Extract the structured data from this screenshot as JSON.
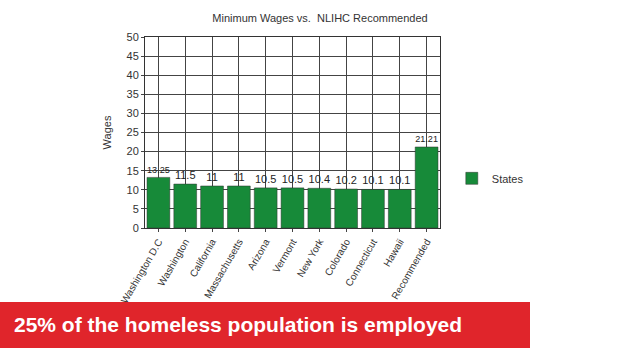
{
  "chart_data": {
    "type": "bar",
    "title": "Minimum Wages vs.  NLIHC Recommended",
    "y_label": "Wages",
    "categories": [
      "Washington D.C",
      "Washington",
      "California",
      "Massachusetts",
      "Arizona",
      "Vermont",
      "New York",
      "Colorado",
      "Connecticut",
      "Hawaii",
      "Recommended"
    ],
    "series": [
      {
        "name": "States",
        "color": "#178a39",
        "values": [
          13.25,
          11.5,
          11,
          11,
          10.5,
          10.5,
          10.4,
          10.2,
          10.1,
          10.1,
          21.21
        ]
      }
    ],
    "ylim": [
      0,
      50
    ],
    "yticks": [
      0,
      5,
      10,
      15,
      20,
      25,
      30,
      35,
      40,
      45,
      50
    ],
    "grid": true,
    "legend": "right",
    "data_labels": true,
    "annotations": [
      "25% of the homeless population is employed"
    ]
  }
}
